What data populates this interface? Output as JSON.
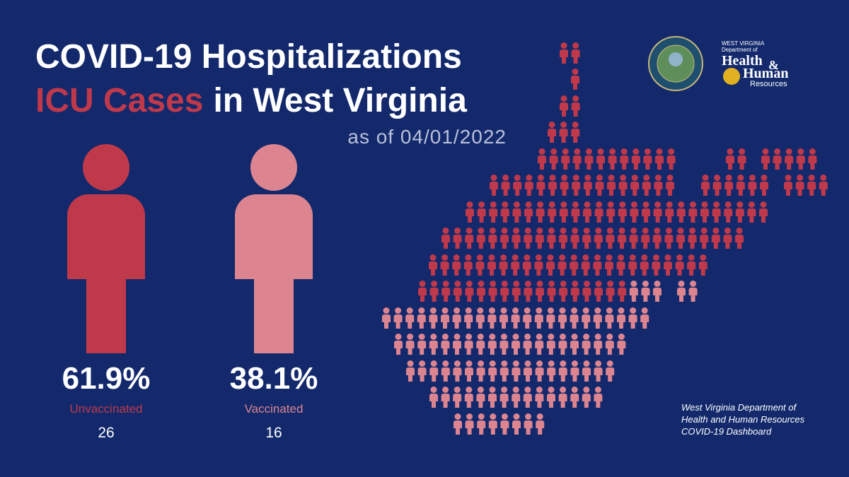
{
  "chart_data": {
    "type": "pictogram",
    "title": "COVID-19 Hospitalizations",
    "title_highlight": "ICU Cases",
    "title_rest": "in West Virginia",
    "subtitle": "as of 04/01/2022",
    "categories": [
      "Unvaccinated",
      "Vaccinated"
    ],
    "values": [
      61.9,
      38.1
    ],
    "value_labels": [
      "61.9%",
      "38.1%"
    ],
    "counts": [
      26,
      16
    ],
    "colors": [
      "#c0394a",
      "#dc8590"
    ],
    "source": [
      "West Virginia Department of",
      "Health and Human Resources",
      "COVID-19 Dashboard"
    ],
    "logo": [
      "WEST VIRGINIA",
      "Department of",
      "Health",
      "&",
      "Human",
      "Resources"
    ]
  }
}
